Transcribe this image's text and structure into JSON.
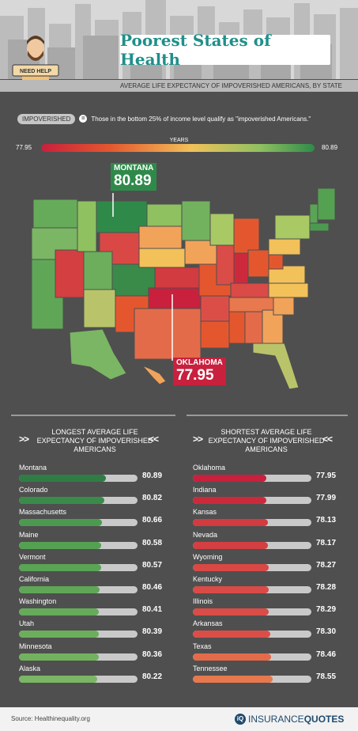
{
  "header": {
    "title": "Poorest States of Health",
    "sign_text": "NEED HELP",
    "subtitle": "AVERAGE LIFE EXPECTANCY OF IMPOVERISHED AMERICANS, BY STATE"
  },
  "legend": {
    "badge": "IMPOVERISHED",
    "equals": "=",
    "definition": "Those in the bottom 25% of income level qualify as \"impoverished Americans.\"",
    "scale_label": "YEARS",
    "scale_min": "77.95",
    "scale_max": "80.89"
  },
  "callouts": {
    "high": {
      "state": "MONTANA",
      "value": "80.89",
      "color": "#2f8a4a"
    },
    "low": {
      "state": "OKLAHOMA",
      "value": "77.95",
      "color": "#c8203d"
    }
  },
  "columns": {
    "left_title": "LONGEST AVERAGE LIFE EXPECTANCY OF IMPOVERISHED AMERICANS",
    "right_title": "SHORTEST AVERAGE LIFE EXPECTANCY OF IMPOVERISHED AMERICANS",
    "chev_left": ">>",
    "chev_right": "<<"
  },
  "chart_data": [
    {
      "type": "bar",
      "title": "LONGEST AVERAGE LIFE EXPECTANCY OF IMPOVERISHED AMERICANS",
      "categories": [
        "Montana",
        "Colorado",
        "Massachusetts",
        "Maine",
        "Vermont",
        "California",
        "Washington",
        "Utah",
        "Minnesota",
        "Alaska"
      ],
      "values": [
        80.89,
        80.82,
        80.66,
        80.58,
        80.57,
        80.46,
        80.41,
        80.39,
        80.36,
        80.22
      ],
      "labels": [
        "80.89",
        "80.82",
        "80.66",
        "80.58",
        "80.57",
        "80.46",
        "80.41",
        "80.39",
        "80.36",
        "80.22"
      ],
      "fill_fraction": [
        0.73,
        0.72,
        0.7,
        0.69,
        0.69,
        0.68,
        0.67,
        0.67,
        0.67,
        0.66
      ],
      "colors": [
        "#2f7d45",
        "#3a8a4a",
        "#4c9a50",
        "#55a152",
        "#5aa455",
        "#5fa757",
        "#66ab5a",
        "#6cae5c",
        "#72b25e",
        "#7ab663"
      ]
    },
    {
      "type": "bar",
      "title": "SHORTEST AVERAGE LIFE EXPECTANCY OF IMPOVERISHED AMERICANS",
      "categories": [
        "Oklahoma",
        "Indiana",
        "Kansas",
        "Nevada",
        "Wyoming",
        "Kentucky",
        "Illinois",
        "Arkansas",
        "Texas",
        "Tennessee"
      ],
      "values": [
        77.95,
        77.99,
        78.13,
        78.17,
        78.27,
        78.28,
        78.29,
        78.3,
        78.46,
        78.55
      ],
      "labels": [
        "77.95",
        "77.99",
        "78.13",
        "78.17",
        "78.27",
        "78.28",
        "78.29",
        "78.30",
        "78.46",
        "78.55"
      ],
      "fill_fraction": [
        0.62,
        0.62,
        0.63,
        0.63,
        0.64,
        0.64,
        0.64,
        0.65,
        0.66,
        0.67
      ],
      "colors": [
        "#c8203d",
        "#cc2a3c",
        "#d23b40",
        "#d43f41",
        "#d94845",
        "#da4a46",
        "#da4c47",
        "#db4e47",
        "#e46b4a",
        "#e8784d"
      ]
    }
  ],
  "footer": {
    "source": "Source: Healthinequality.org",
    "logo_a": "INSURANCE",
    "logo_b": "QUOTES",
    "logo_mark": "iQ"
  }
}
